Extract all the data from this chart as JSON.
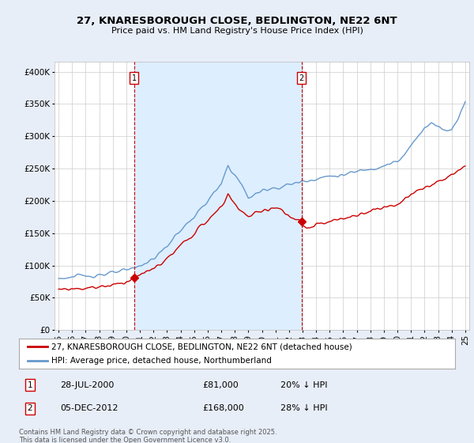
{
  "title": "27, KNARESBOROUGH CLOSE, BEDLINGTON, NE22 6NT",
  "subtitle": "Price paid vs. HM Land Registry's House Price Index (HPI)",
  "ylabel_ticks": [
    "£0",
    "£50K",
    "£100K",
    "£150K",
    "£200K",
    "£250K",
    "£300K",
    "£350K",
    "£400K"
  ],
  "ytick_values": [
    0,
    50000,
    100000,
    150000,
    200000,
    250000,
    300000,
    350000,
    400000
  ],
  "ylim": [
    0,
    415000
  ],
  "xlim_start": 1994.7,
  "xlim_end": 2025.3,
  "purchase1_x": 2000.57,
  "purchase1_y": 81000,
  "purchase2_x": 2012.92,
  "purchase2_y": 168000,
  "vline_color": "#cc0000",
  "house_line_color": "#cc0000",
  "hpi_line_color": "#6699cc",
  "shade_color": "#ddeeff",
  "legend_label_house": "27, KNARESBOROUGH CLOSE, BEDLINGTON, NE22 6NT (detached house)",
  "legend_label_hpi": "HPI: Average price, detached house, Northumberland",
  "annotation1_date": "28-JUL-2000",
  "annotation1_price": "£81,000",
  "annotation1_hpi": "20% ↓ HPI",
  "annotation2_date": "05-DEC-2012",
  "annotation2_price": "£168,000",
  "annotation2_hpi": "28% ↓ HPI",
  "footer": "Contains HM Land Registry data © Crown copyright and database right 2025.\nThis data is licensed under the Open Government Licence v3.0.",
  "background_color": "#e8eef8",
  "plot_bg_color": "#ffffff",
  "grid_color": "#cccccc",
  "hpi_anchors_x": [
    1995.0,
    1996.0,
    1997.0,
    1998.0,
    1999.0,
    2000.0,
    2001.0,
    2002.0,
    2003.0,
    2004.0,
    2005.0,
    2006.0,
    2007.0,
    2007.5,
    2008.0,
    2008.5,
    2009.0,
    2009.5,
    2010.0,
    2010.5,
    2011.0,
    2011.5,
    2012.0,
    2012.5,
    2013.0,
    2013.5,
    2014.0,
    2015.0,
    2016.0,
    2017.0,
    2017.5,
    2018.0,
    2019.0,
    2019.5,
    2020.0,
    2020.5,
    2021.0,
    2021.5,
    2022.0,
    2022.5,
    2023.0,
    2023.5,
    2024.0,
    2024.5,
    2025.0
  ],
  "hpi_anchors_y": [
    80000,
    82000,
    84000,
    86000,
    88000,
    92000,
    100000,
    110000,
    130000,
    155000,
    175000,
    200000,
    225000,
    255000,
    240000,
    225000,
    205000,
    210000,
    215000,
    220000,
    220000,
    222000,
    225000,
    228000,
    230000,
    232000,
    235000,
    238000,
    240000,
    245000,
    248000,
    250000,
    255000,
    258000,
    260000,
    270000,
    285000,
    300000,
    315000,
    320000,
    315000,
    310000,
    310000,
    330000,
    355000
  ],
  "house_anchors_x": [
    1995.0,
    1996.0,
    1997.0,
    1998.0,
    1999.0,
    2000.0,
    2000.57,
    2001.0,
    2002.0,
    2003.0,
    2004.0,
    2005.0,
    2006.0,
    2007.0,
    2007.5,
    2008.0,
    2008.5,
    2009.0,
    2009.5,
    2010.0,
    2011.0,
    2011.5,
    2012.0,
    2012.5,
    2012.92,
    2013.0,
    2013.5,
    2014.0,
    2015.0,
    2016.0,
    2017.0,
    2018.0,
    2019.0,
    2020.0,
    2020.5,
    2021.0,
    2021.5,
    2022.0,
    2022.5,
    2023.0,
    2023.5,
    2024.0,
    2024.5,
    2025.0
  ],
  "house_anchors_y": [
    63000,
    64000,
    65000,
    67000,
    70000,
    75000,
    81000,
    85000,
    95000,
    110000,
    130000,
    150000,
    170000,
    190000,
    210000,
    195000,
    185000,
    175000,
    180000,
    185000,
    190000,
    185000,
    175000,
    170000,
    168000,
    160000,
    158000,
    162000,
    168000,
    172000,
    178000,
    185000,
    190000,
    195000,
    200000,
    210000,
    215000,
    220000,
    225000,
    230000,
    232000,
    240000,
    248000,
    253000
  ]
}
